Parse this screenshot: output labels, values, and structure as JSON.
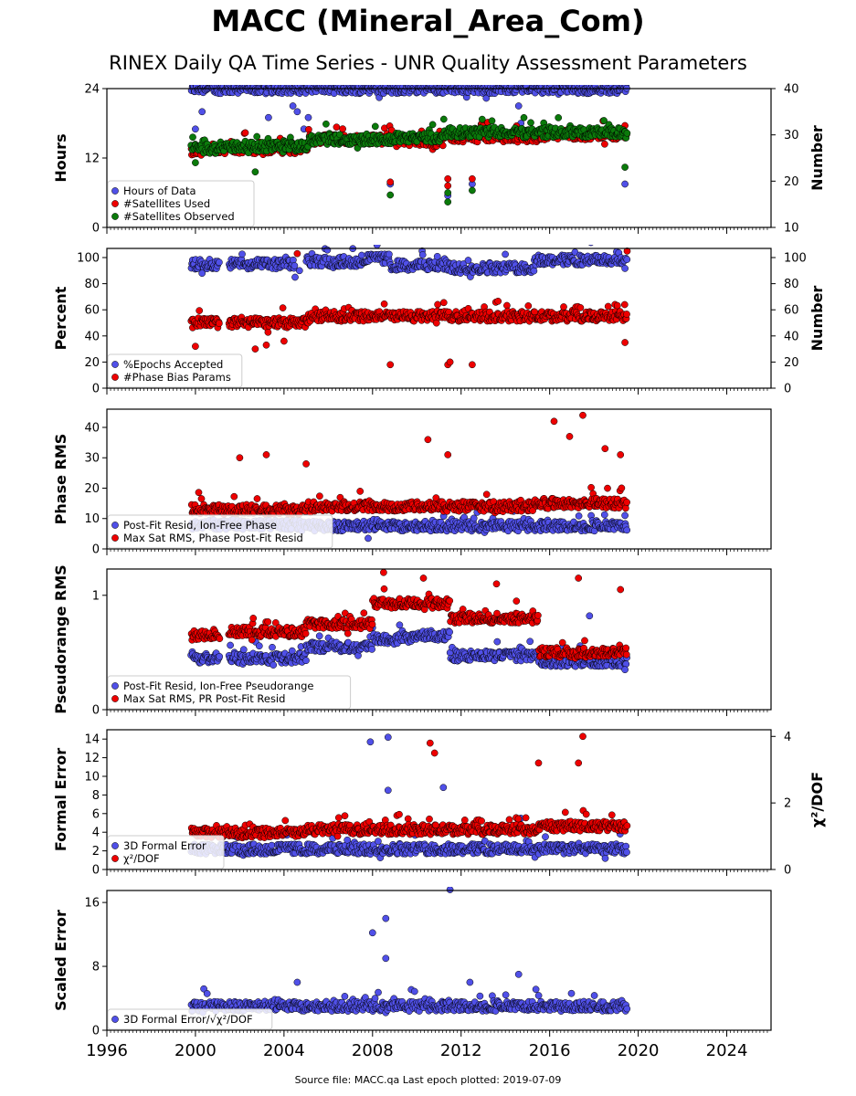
{
  "header": {
    "title": "MACC (Mineral_Area_Com)",
    "subtitle": "RINEX Daily QA Time Series - UNR Quality Assessment Parameters"
  },
  "footer": {
    "text": "Source file: MACC.qa Last epoch plotted: 2019-07-09"
  },
  "colors": {
    "blue": "#5050e8",
    "red": "#ee0000",
    "green": "#0b7a0b",
    "edge": "#000000"
  },
  "chart_data": [
    {
      "type": "scatter",
      "ylabel": "Hours",
      "y2label": "Number",
      "ylim": [
        0,
        24
      ],
      "yticks": [
        "0",
        "12",
        "24"
      ],
      "y2lim": [
        10,
        40
      ],
      "y2ticks": [
        "10",
        "20",
        "30",
        "40"
      ],
      "xlim": [
        1996,
        2026
      ],
      "series": [
        {
          "name": "Hours of Data",
          "color": "blue",
          "axis": "left",
          "segments": [
            [
              1999.8,
              2019.5,
              24
            ]
          ],
          "points": [
            [
              2000.0,
              17
            ],
            [
              2000.3,
              20
            ],
            [
              2003.3,
              19
            ],
            [
              2004.4,
              21
            ],
            [
              2004.6,
              20
            ],
            [
              2004.9,
              17
            ],
            [
              2005.1,
              19
            ],
            [
              2008.8,
              7.5
            ],
            [
              2011.4,
              5.5
            ],
            [
              2012.5,
              7.5
            ],
            [
              2014.6,
              21
            ],
            [
              2014.7,
              18
            ],
            [
              2019.4,
              7.5
            ]
          ]
        },
        {
          "name": "#Satellites Used",
          "color": "red",
          "axis": "right",
          "segments": [
            [
              1999.8,
              2000.3,
              26.5
            ],
            [
              2000.3,
              2005.1,
              27
            ],
            [
              2005.1,
              2009.0,
              29
            ],
            [
              2009.0,
              2011.2,
              28.5
            ],
            [
              2011.2,
              2015.5,
              29.5
            ],
            [
              2015.5,
              2019.5,
              30
            ]
          ],
          "points": [
            [
              2008.8,
              19.8
            ],
            [
              2011.4,
              19
            ],
            [
              2011.4,
              20.5
            ],
            [
              2012.5,
              20.5
            ],
            [
              2019.4,
              32
            ]
          ]
        },
        {
          "name": "#Satellites Observed",
          "color": "green",
          "axis": "right",
          "segments": [
            [
              1999.8,
              2001.1,
              27
            ],
            [
              2001.1,
              2005.1,
              27.5
            ],
            [
              2005.1,
              2009.0,
              29
            ],
            [
              2009.0,
              2011.2,
              29.5
            ],
            [
              2011.2,
              2015.5,
              30.5
            ],
            [
              2015.5,
              2019.5,
              30.5
            ]
          ],
          "points": [
            [
              2000.0,
              24
            ],
            [
              2002.7,
              22
            ],
            [
              2008.8,
              17
            ],
            [
              2011.4,
              17.5
            ],
            [
              2011.4,
              15.5
            ],
            [
              2012.5,
              18
            ],
            [
              2019.4,
              23
            ]
          ]
        }
      ]
    },
    {
      "type": "scatter",
      "ylabel": "Percent",
      "y2label": "Number",
      "ylim": [
        0,
        107
      ],
      "yticks": [
        "0",
        "20",
        "40",
        "60",
        "80",
        "100"
      ],
      "y2lim": [
        0,
        107
      ],
      "y2ticks": [
        "0",
        "20",
        "40",
        "60",
        "80",
        "100"
      ],
      "xlim": [
        1996,
        2026
      ],
      "series": [
        {
          "name": "%Epochs Accepted",
          "color": "blue",
          "axis": "left",
          "segments": [
            [
              1999.8,
              2001.1,
              95
            ],
            [
              2001.5,
              2004.5,
              95
            ],
            [
              2005.0,
              2007.5,
              97
            ],
            [
              2007.5,
              2008.8,
              99
            ],
            [
              2008.8,
              2011.5,
              94
            ],
            [
              2011.5,
              2015.3,
              92
            ],
            [
              2015.3,
              2019.5,
              98
            ]
          ],
          "points": [
            [
              2004.5,
              85
            ],
            [
              2004.7,
              90
            ],
            [
              2000.3,
              88
            ]
          ]
        },
        {
          "name": "#Phase Bias Params",
          "color": "red",
          "axis": "right",
          "segments": [
            [
              1999.8,
              2001.1,
              50
            ],
            [
              2001.5,
              2005.1,
              50
            ],
            [
              2005.1,
              2019.5,
              55
            ]
          ],
          "points": [
            [
              2008.8,
              18
            ],
            [
              2011.4,
              18
            ],
            [
              2011.5,
              20
            ],
            [
              2012.5,
              18
            ],
            [
              2004.6,
              103
            ],
            [
              2019.5,
              105
            ],
            [
              2019.4,
              35
            ],
            [
              2000.0,
              32
            ],
            [
              2002.7,
              30
            ],
            [
              2003.2,
              33
            ],
            [
              2004.0,
              36
            ]
          ]
        }
      ]
    },
    {
      "type": "scatter",
      "ylabel": "Phase RMS",
      "ylim": [
        0,
        46
      ],
      "yticks": [
        "0",
        "10",
        "20",
        "30",
        "40"
      ],
      "xlim": [
        1996,
        2026
      ],
      "series": [
        {
          "name": "Post-Fit Resid, Ion-Free Phase",
          "color": "blue",
          "axis": "left",
          "segments": [
            [
              1999.8,
              2005.0,
              8
            ],
            [
              2005.0,
              2019.5,
              7.5
            ]
          ],
          "points": [
            [
              2007.8,
              3.5
            ],
            [
              2019.4,
              11
            ]
          ]
        },
        {
          "name": "Max Sat RMS, Phase Post-Fit Resid",
          "color": "red",
          "axis": "left",
          "segments": [
            [
              1999.8,
              2005.0,
              13
            ],
            [
              2005.0,
              2015.5,
              14
            ],
            [
              2015.5,
              2019.5,
              15
            ]
          ],
          "points": [
            [
              2002.0,
              30
            ],
            [
              2003.2,
              31
            ],
            [
              2005.0,
              28
            ],
            [
              2010.5,
              36
            ],
            [
              2011.4,
              31
            ],
            [
              2016.2,
              42
            ],
            [
              2016.9,
              37
            ],
            [
              2017.5,
              44
            ],
            [
              2018.5,
              33
            ],
            [
              2019.2,
              31
            ]
          ]
        }
      ]
    },
    {
      "type": "scatter",
      "ylabel": "Pseudorange RMS",
      "ylim": [
        0,
        1.23
      ],
      "yticks": [
        "0",
        "1"
      ],
      "xlim": [
        1996,
        2026
      ],
      "series": [
        {
          "name": "Post-Fit Resid, Ion-Free Pseudorange",
          "color": "blue",
          "axis": "left",
          "segments": [
            [
              1999.8,
              2001.1,
              0.45
            ],
            [
              2001.5,
              2005.0,
              0.45
            ],
            [
              2005.0,
              2008.0,
              0.55
            ],
            [
              2008.0,
              2010.0,
              0.62
            ],
            [
              2010.0,
              2011.5,
              0.65
            ],
            [
              2011.5,
              2015.5,
              0.47
            ],
            [
              2015.5,
              2019.5,
              0.42
            ]
          ],
          "points": [
            [
              2017.8,
              0.82
            ],
            [
              2019.4,
              0.35
            ]
          ]
        },
        {
          "name": "Max Sat RMS, PR Post-Fit Resid",
          "color": "red",
          "axis": "left",
          "segments": [
            [
              1999.8,
              2001.1,
              0.65
            ],
            [
              2001.5,
              2005.0,
              0.68
            ],
            [
              2005.0,
              2008.0,
              0.75
            ],
            [
              2008.0,
              2011.5,
              0.93
            ],
            [
              2011.5,
              2015.5,
              0.8
            ],
            [
              2015.5,
              2019.5,
              0.5
            ]
          ],
          "points": [
            [
              2008.5,
              1.2
            ],
            [
              2010.3,
              1.15
            ],
            [
              2013.6,
              1.1
            ],
            [
              2017.3,
              1.15
            ],
            [
              2019.2,
              1.05
            ],
            [
              2014.5,
              0.95
            ]
          ]
        }
      ]
    },
    {
      "type": "scatter",
      "ylabel": "Formal Error",
      "y2label": "χ²/DOF",
      "ylim": [
        0,
        15
      ],
      "yticks": [
        "0",
        "2",
        "4",
        "6",
        "8",
        "10",
        "12",
        "14"
      ],
      "y2lim": [
        0,
        4.2
      ],
      "y2ticks": [
        "0",
        "2",
        "4"
      ],
      "xlim": [
        1996,
        2026
      ],
      "series": [
        {
          "name": "3D Formal Error",
          "color": "blue",
          "axis": "left",
          "segments": [
            [
              1999.8,
              2019.5,
              2.2
            ]
          ],
          "points": [
            [
              2007.9,
              13.7
            ],
            [
              2008.7,
              14.2
            ],
            [
              2008.7,
              8.5
            ],
            [
              2011.2,
              8.8
            ],
            [
              2014.7,
              5.5
            ]
          ]
        },
        {
          "name": "χ²/DOF",
          "color": "red",
          "axis": "right",
          "segments": [
            [
              1999.8,
              2005.0,
              1.1
            ],
            [
              2005.0,
              2015.5,
              1.2
            ],
            [
              2015.5,
              2019.5,
              1.3
            ]
          ],
          "points": [
            [
              2010.6,
              3.8
            ],
            [
              2010.8,
              3.5
            ],
            [
              2017.5,
              4.0
            ],
            [
              2017.3,
              3.2
            ],
            [
              2015.5,
              3.2
            ]
          ]
        }
      ]
    },
    {
      "type": "scatter",
      "ylabel": "Scaled Error",
      "ylim": [
        0,
        17.5
      ],
      "yticks": [
        "0",
        "8",
        "16"
      ],
      "xlim": [
        1996,
        2026
      ],
      "xticks": [
        "1996",
        "2000",
        "2004",
        "2008",
        "2012",
        "2016",
        "2020",
        "2024"
      ],
      "series": [
        {
          "name": "3D Formal Error/√χ²/DOF",
          "color": "blue",
          "axis": "left",
          "segments": [
            [
              1999.8,
              2019.5,
              3
            ]
          ],
          "points": [
            [
              2008.0,
              12.2
            ],
            [
              2008.6,
              14
            ],
            [
              2008.6,
              9
            ],
            [
              2011.5,
              17.6
            ],
            [
              2014.6,
              7
            ],
            [
              2004.6,
              6
            ],
            [
              2012.4,
              6
            ]
          ]
        }
      ]
    }
  ]
}
